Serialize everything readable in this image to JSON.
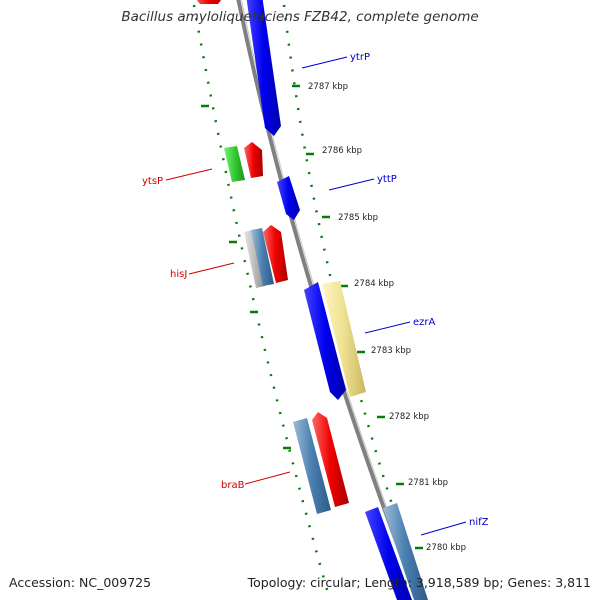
{
  "title": "Bacillus amyloliquefaciens FZB42, complete genome",
  "footer": {
    "accession": "Accession: NC_009725",
    "stats": "Topology: circular; Length: 3,918,589 bp; Genes: 3,811"
  },
  "colors": {
    "backbone": "#808080",
    "tick_dots": "#0a7a0a",
    "forward_label": "#0000cc",
    "reverse_label": "#cc0000",
    "gene_blue": "#0000ee",
    "gene_red": "#ee0000",
    "gene_green": "#33cc33",
    "gene_steelblue": "#4a7fb0",
    "gene_yellow": "#eee090"
  },
  "kbp_ticks": [
    {
      "label": "2787 kbp"
    },
    {
      "label": "2786 kbp"
    },
    {
      "label": "2785 kbp"
    },
    {
      "label": "2784 kbp"
    },
    {
      "label": "2783 kbp"
    },
    {
      "label": "2782 kbp"
    },
    {
      "label": "2781 kbp"
    },
    {
      "label": "2780 kbp"
    }
  ],
  "gene_labels": [
    {
      "label": "ytrP",
      "strand": "forward"
    },
    {
      "label": "yttP",
      "strand": "forward"
    },
    {
      "label": "ezrA",
      "strand": "forward"
    },
    {
      "label": "nifZ",
      "strand": "forward"
    },
    {
      "label": "ytsP",
      "strand": "reverse"
    },
    {
      "label": "hisJ",
      "strand": "reverse"
    },
    {
      "label": "braB",
      "strand": "reverse"
    }
  ]
}
